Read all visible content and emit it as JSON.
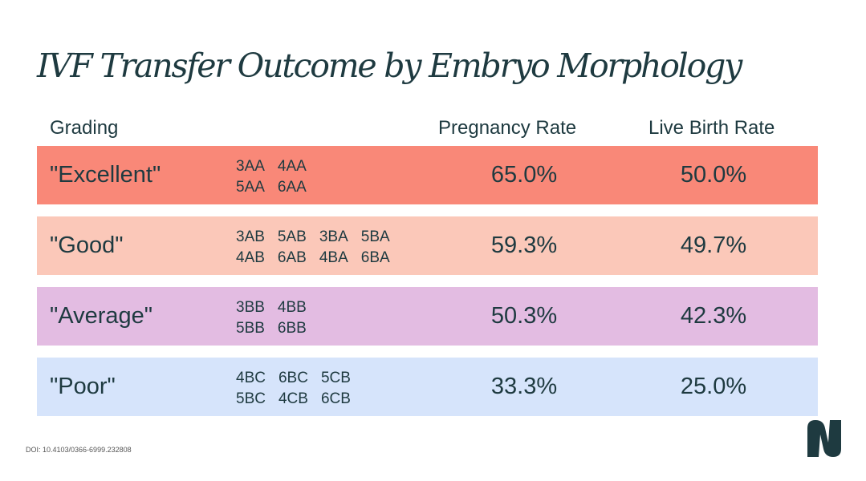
{
  "title": "IVF Transfer Outcome by Embryo Morphology",
  "headers": {
    "grading": "Grading",
    "pregnancy_rate": "Pregnancy Rate",
    "live_birth_rate": "Live Birth Rate"
  },
  "doi": "DOI: 10.4103/0366-6999.232808",
  "logo_icon": "brand-n-logo-icon",
  "chart_data": {
    "type": "table",
    "title": "IVF Transfer Outcome by Embryo Morphology",
    "columns": [
      "Grading",
      "Pregnancy Rate",
      "Live Birth Rate"
    ],
    "rows": [
      {
        "grade": "\"Excellent\"",
        "codes": [
          [
            "3AA",
            "4AA"
          ],
          [
            "5AA",
            "6AA"
          ]
        ],
        "pregnancy_rate": "65.0%",
        "live_birth_rate": "50.0%",
        "pregnancy_value": 65.0,
        "live_birth_value": 50.0,
        "color": "#f98878"
      },
      {
        "grade": "\"Good\"",
        "codes": [
          [
            "3AB",
            "5AB",
            "3BA",
            "5BA"
          ],
          [
            "4AB",
            "6AB",
            "4BA",
            "6BA"
          ]
        ],
        "pregnancy_rate": "59.3%",
        "live_birth_rate": "49.7%",
        "pregnancy_value": 59.3,
        "live_birth_value": 49.7,
        "color": "#fbc8b9"
      },
      {
        "grade": "\"Average\"",
        "codes": [
          [
            "3BB",
            "4BB"
          ],
          [
            "5BB",
            "6BB"
          ]
        ],
        "pregnancy_rate": "50.3%",
        "live_birth_rate": "42.3%",
        "pregnancy_value": 50.3,
        "live_birth_value": 42.3,
        "color": "#e3bce2"
      },
      {
        "grade": "\"Poor\"",
        "codes": [
          [
            "4BC",
            "6BC",
            "5CB"
          ],
          [
            "5BC",
            "4CB",
            "6CB"
          ]
        ],
        "pregnancy_rate": "33.3%",
        "live_birth_rate": "25.0%",
        "pregnancy_value": 33.3,
        "live_birth_value": 25.0,
        "color": "#d6e4fb"
      }
    ]
  }
}
